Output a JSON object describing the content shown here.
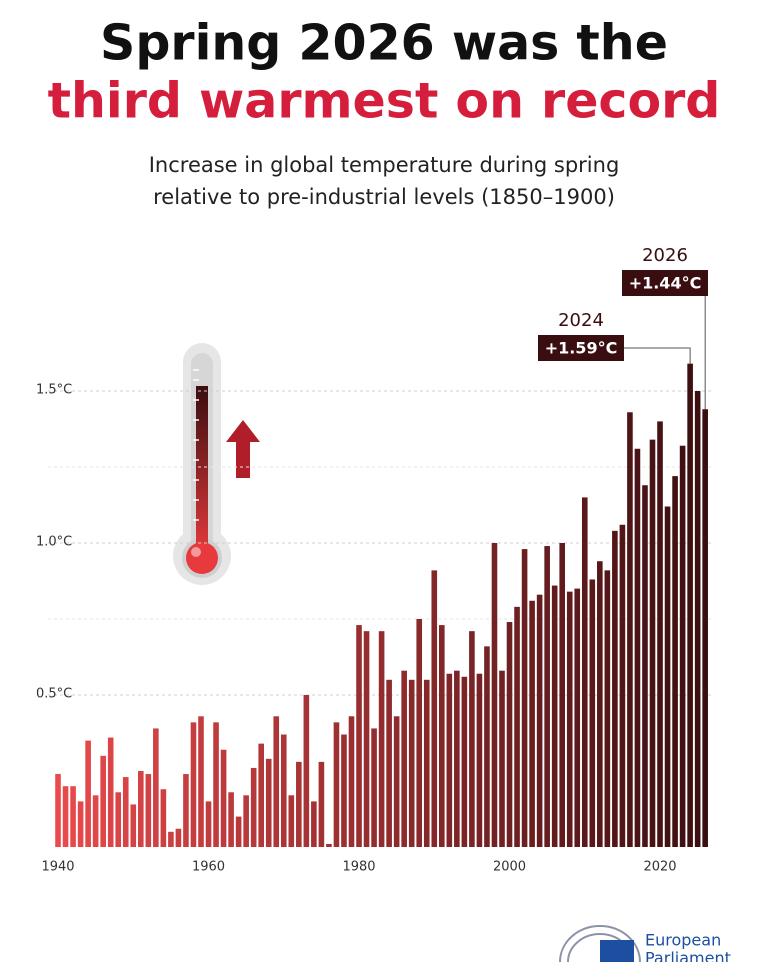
{
  "chart_data": {
    "type": "bar",
    "title": "Spring 2026 was the",
    "title_highlight": "third warmest on record",
    "title_color": "#111111",
    "highlight_color": "#d41e3c",
    "subtitle": [
      "Increase in global temperature during spring",
      "relative to pre-industrial levels (1850–1900)"
    ],
    "x": [
      1940,
      1941,
      1942,
      1943,
      1944,
      1945,
      1946,
      1947,
      1948,
      1949,
      1950,
      1951,
      1952,
      1953,
      1954,
      1955,
      1956,
      1957,
      1958,
      1959,
      1960,
      1961,
      1962,
      1963,
      1964,
      1965,
      1966,
      1967,
      1968,
      1969,
      1970,
      1971,
      1972,
      1973,
      1974,
      1975,
      1976,
      1977,
      1978,
      1979,
      1980,
      1981,
      1982,
      1983,
      1984,
      1985,
      1986,
      1987,
      1988,
      1989,
      1990,
      1991,
      1992,
      1993,
      1994,
      1995,
      1996,
      1997,
      1998,
      1999,
      2000,
      2001,
      2002,
      2003,
      2004,
      2005,
      2006,
      2007,
      2008,
      2009,
      2010,
      2011,
      2012,
      2013,
      2014,
      2015,
      2016,
      2017,
      2018,
      2019,
      2020,
      2021,
      2022,
      2023,
      2024,
      2025,
      2026
    ],
    "values": [
      0.24,
      0.2,
      0.2,
      0.15,
      0.35,
      0.17,
      0.3,
      0.36,
      0.18,
      0.23,
      0.14,
      0.25,
      0.24,
      0.39,
      0.19,
      0.05,
      0.06,
      0.24,
      0.41,
      0.43,
      0.15,
      0.41,
      0.32,
      0.18,
      0.1,
      0.17,
      0.26,
      0.34,
      0.29,
      0.43,
      0.37,
      0.17,
      0.28,
      0.5,
      0.15,
      0.28,
      0.01,
      0.41,
      0.37,
      0.43,
      0.73,
      0.71,
      0.39,
      0.71,
      0.55,
      0.43,
      0.58,
      0.55,
      0.75,
      0.55,
      0.91,
      0.73,
      0.57,
      0.58,
      0.56,
      0.71,
      0.57,
      0.66,
      1.0,
      0.58,
      0.74,
      0.79,
      0.98,
      0.81,
      0.83,
      0.99,
      0.86,
      1.0,
      0.84,
      0.85,
      1.15,
      0.88,
      0.94,
      0.91,
      1.04,
      1.06,
      1.43,
      1.31,
      1.19,
      1.34,
      1.4,
      1.12,
      1.22,
      1.32,
      1.59,
      1.5,
      1.44
    ],
    "color_start": "#ea4a4c",
    "color_end": "#3a0e10",
    "xlim": [
      1939,
      2027
    ],
    "xticks": [
      1940,
      1960,
      1980,
      2000,
      2020
    ],
    "ylim": [
      0,
      1.5
    ],
    "yticks": [
      {
        "value": 0.5,
        "label": "0.5°C"
      },
      {
        "value": 1.0,
        "label": "1.0°C"
      },
      {
        "value": 1.5,
        "label": "1.5°C"
      }
    ],
    "minor_grid": [
      0.75,
      1.25
    ],
    "grid": true,
    "annotations": [
      {
        "year": 2024,
        "text": "+1.59°C"
      },
      {
        "year": 2026,
        "text": "+1.44°C"
      }
    ],
    "logo_text": [
      "European",
      "Parliament"
    ]
  }
}
